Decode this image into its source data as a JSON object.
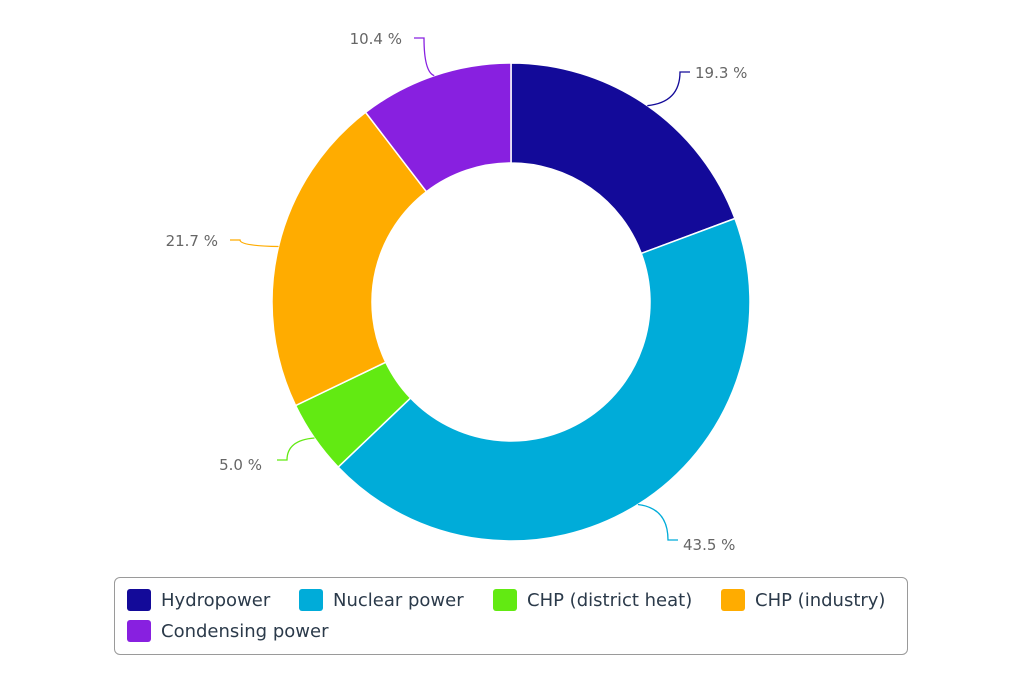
{
  "chart_data": {
    "type": "pie",
    "donut": true,
    "title": "",
    "slices": [
      {
        "name": "Hydropower",
        "value": 19.3,
        "label": "19.3 %",
        "color": "#130a99"
      },
      {
        "name": "Nuclear power",
        "value": 43.5,
        "label": "43.5 %",
        "color": "#00acd9"
      },
      {
        "name": "CHP (district heat)",
        "value": 5.0,
        "label": "5.0 %",
        "color": "#62ea12"
      },
      {
        "name": "CHP (industry)",
        "value": 21.7,
        "label": "21.7 %",
        "color": "#ffac00"
      },
      {
        "name": "Condensing power",
        "value": 10.4,
        "label": "10.4 %",
        "color": "#8820e0"
      }
    ],
    "legend_position": "bottom"
  }
}
